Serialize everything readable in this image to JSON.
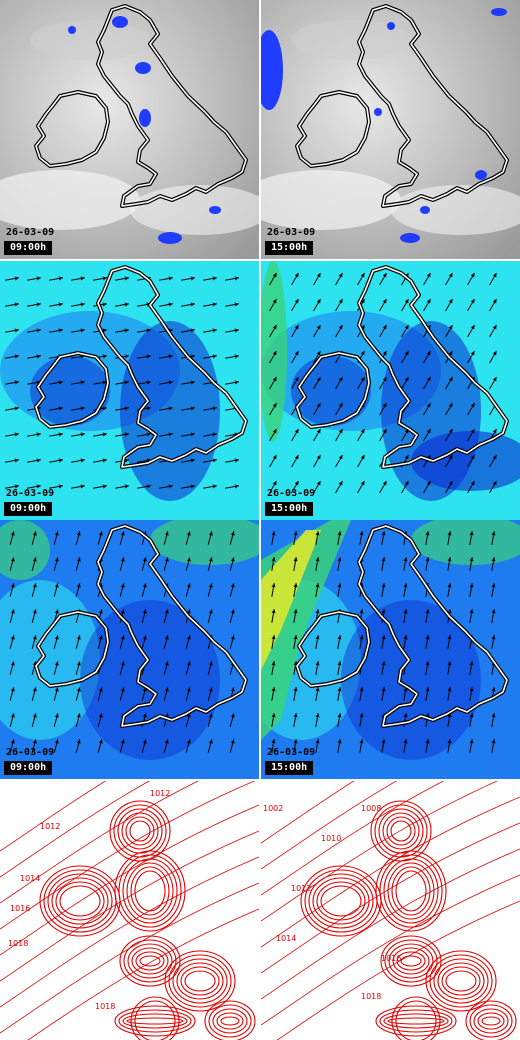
{
  "panels": [
    {
      "kind": "cloud",
      "date": "26-03-09",
      "time": "09:00h"
    },
    {
      "kind": "cloud",
      "date": "26-03-09",
      "time": "15:00h"
    },
    {
      "kind": "wind_a",
      "date": "26-03-09",
      "time": "09:00h"
    },
    {
      "kind": "wind_a",
      "date": "26-03-09",
      "time": "15:00h"
    },
    {
      "kind": "wind_b",
      "date": "26-03-09",
      "time": "09:00h"
    },
    {
      "kind": "wind_b",
      "date": "26-03-09",
      "time": "15:00h"
    },
    {
      "kind": "pressure",
      "date": "",
      "time": ""
    },
    {
      "kind": "pressure",
      "date": "",
      "time": ""
    }
  ],
  "pressure_labels": {
    "left": [
      "1012",
      "1012",
      "1014",
      "1016",
      "1018",
      "1018"
    ],
    "right": [
      "1008",
      "1010",
      "1012",
      "1014",
      "1016",
      "1018",
      "1002"
    ]
  },
  "colors": {
    "cloud_bg": "#9a9a9a",
    "precip": "#1f3cff",
    "wind_light": "#2ee3f0",
    "wind_mid": "#1e7cf0",
    "wind_dark": "#0a2ccf",
    "wind_green": "#3ad27a",
    "wind_yellow": "#d9e830",
    "isobar": "#e10000"
  }
}
